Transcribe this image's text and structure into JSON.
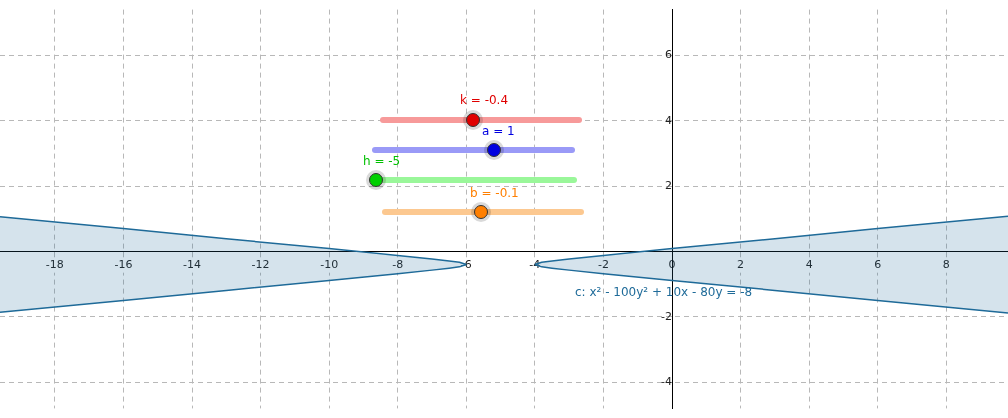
{
  "chart_data": {
    "type": "line",
    "series": [
      {
        "color": "#1f6b99",
        "x": [
          -19.6,
          -16,
          -13,
          -10,
          -8,
          -7,
          -6.5,
          -6.2,
          -6
        ],
        "values": [
          1.06,
          0.7,
          0.39,
          0.09,
          -0.12,
          -0.23,
          -0.29,
          -0.33,
          -0.4
        ],
        "upper": [
          1.06,
          0.7,
          0.39,
          0.09,
          -0.12,
          -0.23,
          -0.29,
          -0.33,
          -0.4
        ],
        "lower": [
          -1.86,
          -1.5,
          -1.19,
          -0.89,
          -0.68,
          -0.57,
          -0.51,
          -0.47,
          -0.4
        ]
      },
      {
        "color": "#1f6b99",
        "x": [
          -4,
          -3.8,
          -3.5,
          -3,
          -2,
          0,
          3,
          6,
          9.8
        ],
        "values": [
          -0.4,
          -0.33,
          -0.29,
          -0.23,
          -0.12,
          0.09,
          0.39,
          0.7,
          1.08
        ],
        "upper": [
          -0.4,
          -0.33,
          -0.29,
          -0.23,
          -0.12,
          0.09,
          0.39,
          0.7,
          1.08
        ],
        "lower": [
          -0.4,
          -0.47,
          -0.51,
          -0.57,
          -0.68,
          -0.89,
          -1.19,
          -1.5,
          -1.88
        ]
      },
      {
        "color": "#1f6b99",
        "x": [
          -19.6,
          -16,
          -13,
          -10,
          -8,
          -7,
          -6.5,
          -6.2,
          -6
        ],
        "values": [
          -1.86,
          -1.5,
          -1.19,
          -0.89,
          -0.68,
          -0.57,
          -0.51,
          -0.47,
          -0.4
        ]
      },
      {
        "color": "#1f6b99",
        "x": [
          -4,
          -3.8,
          -3.5,
          -3,
          -2,
          0,
          3,
          6,
          9.8
        ],
        "values": [
          -0.4,
          -0.47,
          -0.51,
          -0.57,
          -0.68,
          -0.89,
          -1.19,
          -1.5,
          -1.88
        ]
      }
    ],
    "xlim": [
      -19.6,
      9.8
    ],
    "ylim": [
      -4.8,
      7.4
    ],
    "xticks": [
      -18,
      -16,
      -14,
      -12,
      -10,
      -8,
      -6,
      -4,
      -2,
      0,
      2,
      4,
      6,
      8
    ],
    "yticks": [
      -4,
      -2,
      {
        "value": 0,
        "label": null
      },
      2,
      4,
      6
    ],
    "grid": true,
    "legend": false,
    "annotations": [
      "c: x² - 100y² + 10x - 80y = -8",
      "k = -0.4",
      "a = 1",
      "h = -5",
      "b = -0.1"
    ]
  }
}
